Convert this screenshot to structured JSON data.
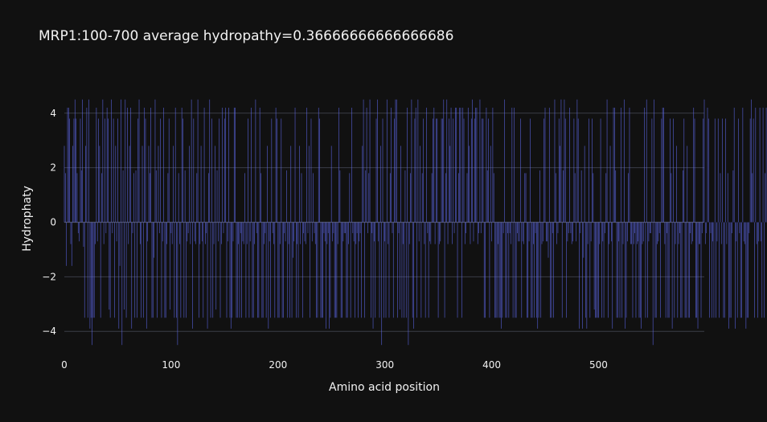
{
  "chart_data": {
    "type": "bar",
    "title": "MRP1:100-700 average hydropathy=0.36666666666666686",
    "xlabel": "Amino acid position",
    "ylabel": "Hydrophaty",
    "xlim": [
      0,
      599
    ],
    "ylim": [
      -4.7,
      4.7
    ],
    "x_ticks": [
      0,
      100,
      200,
      300,
      400,
      500
    ],
    "y_ticks": [
      -4,
      -2,
      0,
      2,
      4
    ],
    "grid": true,
    "bar_color": "#636efa",
    "background": "#111111",
    "values": [
      2.8,
      1.8,
      -1.6,
      4.2,
      4.2,
      3.8,
      -0.8,
      -1.6,
      2.8,
      3.8,
      4.5,
      3.8,
      1.8,
      -0.4,
      -0.7,
      3.8,
      1.9,
      4.5,
      -0.9,
      -3.5,
      2.8,
      4.2,
      -3.5,
      4.5,
      -3.9,
      -3.5,
      -4.5,
      -3.5,
      -3.5,
      -0.8,
      4.2,
      -0.7,
      3.8,
      2.8,
      -3.5,
      1.8,
      4.5,
      -0.8,
      3.8,
      -0.4,
      4.2,
      3.8,
      -3.2,
      -3.5,
      4.5,
      -0.4,
      3.8,
      -3.5,
      2.8,
      -0.7,
      3.8,
      -3.9,
      -1.6,
      4.5,
      -4.5,
      1.9,
      -3.2,
      4.5,
      -3.5,
      4.2,
      -0.8,
      2.8,
      4.2,
      -3.9,
      -0.4,
      1.8,
      -3.5,
      1.9,
      -3.5,
      3.8,
      4.5,
      -0.8,
      -3.5,
      2.8,
      -3.5,
      4.2,
      3.8,
      -3.9,
      -0.7,
      2.8,
      1.8,
      4.2,
      -3.5,
      -3.5,
      -1.3,
      4.5,
      1.9,
      -3.5,
      2.8,
      -0.4,
      3.8,
      -3.5,
      -0.7,
      4.2,
      -3.5,
      -3.5,
      -0.8,
      1.8,
      3.8,
      -3.2,
      -0.4,
      -0.8,
      2.8,
      -3.5,
      4.2,
      -3.5,
      -4.5,
      1.8,
      -0.8,
      -3.5,
      4.2,
      3.8,
      -3.5,
      1.9,
      -3.5,
      -0.7,
      -0.4,
      2.8,
      -0.8,
      4.5,
      -3.9,
      3.8,
      -0.7,
      -0.8,
      1.8,
      4.5,
      -3.5,
      -0.8,
      2.8,
      -0.7,
      -3.5,
      4.2,
      -0.8,
      -0.4,
      -3.9,
      1.8,
      4.5,
      -3.5,
      3.8,
      -3.5,
      -0.8,
      2.8,
      -3.2,
      1.9,
      -0.7,
      3.8,
      -3.5,
      -0.8,
      4.2,
      -0.4,
      3.8,
      4.2,
      -3.5,
      -0.7,
      4.2,
      -3.5,
      -3.9,
      -3.5,
      -0.7,
      4.2,
      4.2,
      -3.5,
      -3.5,
      -0.8,
      -3.5,
      -0.4,
      -3.5,
      -0.7,
      -0.8,
      1.8,
      -3.5,
      -0.8,
      3.8,
      -3.5,
      -0.7,
      4.2,
      -3.5,
      -3.5,
      -0.8,
      4.5,
      -0.4,
      -3.5,
      -3.5,
      4.2,
      1.8,
      -3.5,
      -3.5,
      -0.8,
      -0.4,
      -3.5,
      2.8,
      -3.9,
      -0.7,
      -3.5,
      3.8,
      -0.4,
      -0.8,
      -3.5,
      4.2,
      3.8,
      -3.5,
      -3.5,
      -0.8,
      3.8,
      -3.5,
      -3.5,
      -0.4,
      -0.7,
      1.9,
      -3.5,
      -0.8,
      -3.5,
      2.8,
      -3.5,
      -1.3,
      -0.7,
      4.2,
      -3.5,
      -0.8,
      -3.5,
      2.8,
      -0.8,
      1.8,
      -3.5,
      -0.4,
      -0.7,
      -0.8,
      4.2,
      -0.4,
      2.8,
      -3.5,
      3.8,
      -0.7,
      1.8,
      -0.4,
      -0.8,
      -3.5,
      -3.5,
      4.2,
      3.8,
      -3.5,
      -3.5,
      -3.5,
      -0.4,
      -0.7,
      -3.9,
      -0.8,
      -0.4,
      -3.9,
      -3.5,
      2.8,
      -0.7,
      -0.4,
      -3.5,
      -3.5,
      -3.5,
      -0.8,
      4.2,
      1.9,
      -3.5,
      -3.5,
      -0.7,
      -0.4,
      -0.4,
      -3.5,
      -3.5,
      -0.8,
      1.8,
      -3.5,
      4.2,
      -0.4,
      -0.7,
      -3.5,
      -0.8,
      -0.4,
      -3.5,
      -0.7,
      -0.4,
      -3.5,
      2.8,
      4.5,
      -3.5,
      1.9,
      4.2,
      -0.4,
      1.8,
      4.5,
      -3.5,
      -0.4,
      -3.9,
      -0.7,
      -3.5,
      3.8,
      4.5,
      -0.7,
      -3.5,
      2.8,
      -4.5,
      3.8,
      -3.5,
      -0.7,
      -3.5,
      4.5,
      -0.8,
      -3.5,
      1.8,
      4.2,
      -0.4,
      -3.5,
      3.8,
      4.5,
      4.5,
      -3.5,
      -0.4,
      -3.2,
      2.8,
      -3.5,
      -0.8,
      -3.5,
      1.9,
      -3.5,
      4.2,
      -4.5,
      -0.8,
      1.8,
      4.5,
      -3.5,
      -3.9,
      3.8,
      4.2,
      -3.5,
      4.5,
      -0.7,
      2.8,
      -3.5,
      1.8,
      3.8,
      -0.8,
      -3.5,
      4.2,
      -0.4,
      -3.5,
      -0.7,
      -0.8,
      1.8,
      3.8,
      4.2,
      -0.8,
      3.8,
      3.8,
      -3.5,
      -0.8,
      -0.7,
      3.8,
      3.8,
      4.5,
      -3.5,
      1.8,
      4.5,
      -0.8,
      3.8,
      2.8,
      4.2,
      -0.8,
      3.8,
      -0.4,
      4.2,
      4.2,
      -3.5,
      1.8,
      4.2,
      4.2,
      -3.5,
      4.2,
      3.8,
      -0.8,
      -0.4,
      1.8,
      4.2,
      2.8,
      -0.8,
      3.8,
      4.5,
      -0.7,
      3.8,
      4.2,
      4.2,
      -0.8,
      -0.4,
      4.5,
      -0.4,
      3.8,
      3.8,
      -3.5,
      -3.5,
      4.2,
      1.9,
      3.8,
      -3.5,
      2.8,
      -0.7,
      4.2,
      1.8,
      -3.5,
      -3.5,
      -3.5,
      -0.8,
      -3.5,
      -3.5,
      -3.9,
      -3.5,
      -0.4,
      4.5,
      -3.5,
      -3.5,
      -0.4,
      -3.5,
      -0.4,
      -0.8,
      4.2,
      -3.5,
      4.2,
      -3.5,
      -3.5,
      -0.4,
      -0.7,
      -0.7,
      3.8,
      -3.5,
      -0.7,
      -0.8,
      1.8,
      1.8,
      -3.5,
      -3.5,
      -0.7,
      3.8,
      -3.5,
      -3.5,
      -0.8,
      -3.5,
      -0.4,
      -3.5,
      -3.9,
      -3.5,
      1.9,
      -3.5,
      -0.8,
      -0.7,
      3.8,
      4.2,
      -0.7,
      -0.7,
      -1.3,
      4.2,
      -3.5,
      -3.5,
      -0.4,
      -3.5,
      4.5,
      1.8,
      -0.8,
      -0.4,
      3.8,
      2.8,
      4.5,
      -3.5,
      1.9,
      4.5,
      3.8,
      -3.5,
      -0.7,
      -0.4,
      4.2,
      -0.4,
      -0.8,
      -0.7,
      3.8,
      1.8,
      -0.7,
      4.5,
      3.8,
      -3.9,
      -0.4,
      1.9,
      -3.9,
      -1.3,
      2.8,
      -3.5,
      -3.9,
      -0.8,
      3.8,
      -3.5,
      -0.7,
      3.8,
      1.8,
      -3.2,
      -3.5,
      -3.5,
      -3.5,
      -3.5,
      -0.8,
      3.8,
      -3.5,
      -0.7,
      -3.5,
      -0.4,
      1.8,
      4.5,
      -3.5,
      -0.8,
      2.8,
      -0.7,
      -3.9,
      4.2,
      4.2,
      1.9,
      -3.5,
      -3.5,
      -0.7,
      -3.5,
      4.2,
      -3.5,
      -0.8,
      4.5,
      -3.9,
      -3.5,
      -0.7,
      1.8,
      4.2,
      -0.8,
      -0.8,
      -3.5,
      -0.8,
      -0.4,
      -3.5,
      -0.8,
      -0.7,
      -3.5,
      -3.5,
      -3.9,
      -0.8,
      -0.7,
      4.2,
      -3.5,
      4.5,
      -3.5,
      -0.7,
      -0.4,
      -0.4,
      3.8,
      -4.5,
      4.5,
      -3.5,
      -3.5,
      -0.8,
      -0.7,
      -0.4,
      -3.5,
      3.8,
      4.2,
      4.2,
      -0.8,
      -3.5,
      -0.4,
      -3.5,
      -3.5,
      3.8,
      1.8,
      -3.9,
      3.8,
      -3.5,
      -0.8,
      2.8,
      -3.5,
      -0.8,
      -0.4,
      -3.5,
      -3.5,
      1.9,
      3.8,
      -3.5,
      -3.5,
      2.8,
      -3.5,
      -3.5,
      -0.4,
      -0.8,
      -0.7,
      4.2,
      3.8,
      -3.5,
      -3.5,
      -3.9,
      -0.8,
      -0.8,
      -3.5,
      -0.4,
      3.8,
      4.5,
      -0.8,
      -0.4,
      4.2,
      3.8,
      -3.5,
      -0.4,
      -3.5,
      -0.7,
      -3.5,
      3.8,
      -3.5,
      -0.7,
      3.8,
      -3.5,
      1.8,
      -0.8,
      3.8,
      -3.5,
      -3.5,
      3.8,
      -0.8,
      1.8,
      -3.9,
      -3.5,
      -3.5,
      -0.4,
      1.9,
      4.2,
      -3.9,
      -0.7,
      -3.5,
      3.8,
      -0.4,
      -3.5,
      -3.5,
      4.2,
      -0.7,
      -0.8,
      -3.9,
      -3.5,
      -3.5,
      -0.4,
      3.8,
      4.5,
      1.8,
      3.8,
      -3.5,
      4.2,
      -0.8,
      -3.5,
      -0.7,
      4.2,
      -0.7,
      -3.5,
      4.2,
      -3.5,
      1.8,
      4.2,
      -0.4,
      -0.8,
      -3.5,
      -0.4,
      -1.3,
      -0.8,
      4.2,
      -3.5,
      -3.5,
      -0.8,
      4.5,
      -3.5,
      -3.5,
      1.9,
      -0.4,
      -0.8,
      -3.5,
      -3.5,
      -3.5,
      -0.8,
      4.2,
      -0.4,
      -3.5,
      1.8,
      -3.5,
      4.2,
      -3.5,
      3.8,
      -0.4,
      -3.5,
      1.8,
      -0.4,
      -0.7,
      -0.8,
      4.2,
      3.8,
      3.8,
      -3.5,
      -0.4,
      1.8,
      2.8,
      4.2,
      -3.5,
      -3.5,
      -0.8,
      4.2,
      -3.5,
      4.5,
      -3.9,
      -0.8,
      1.8,
      -3.5,
      -0.7,
      4.2,
      -0.4,
      -3.5,
      -0.4,
      -3.5,
      -0.8,
      3.8,
      -3.5,
      -3.5,
      -0.7,
      2.8,
      1.8,
      -0.8,
      3.8,
      -3.5,
      -3.5,
      4.2,
      -0.4,
      -3.5,
      -3.5,
      -3.5,
      -0.8,
      -3.2,
      -3.5,
      -0.8,
      -0.4,
      -0.4,
      4.5,
      1.8,
      -3.5,
      -0.7,
      3.8,
      -3.5,
      -0.8,
      -0.4,
      -3.5,
      2.8,
      -3.5,
      -0.4,
      -3.5,
      -0.8,
      -0.4,
      -3.5,
      4.2,
      3.8,
      -3.5,
      -3.5,
      -0.7,
      -0.4,
      3.8,
      4.5,
      -0.4,
      -3.5,
      -3.5,
      -0.7,
      -0.8,
      -3.5,
      -3.5,
      -0.4,
      -0.7,
      3.8,
      -3.5,
      1.8,
      4.2,
      -0.8,
      -0.7,
      4.5,
      -3.5,
      -3.5,
      -0.8,
      -3.5,
      4.2,
      -0.4,
      -3.5,
      2.8,
      -0.7,
      -3.5,
      -0.4,
      -0.4,
      -0.4,
      -0.8,
      2.8,
      -3.5,
      -0.4,
      -3.5,
      4.2,
      -3.5,
      4.5,
      -0.8,
      -3.5,
      1.9,
      -3.5,
      -3.5,
      -0.4
    ]
  }
}
